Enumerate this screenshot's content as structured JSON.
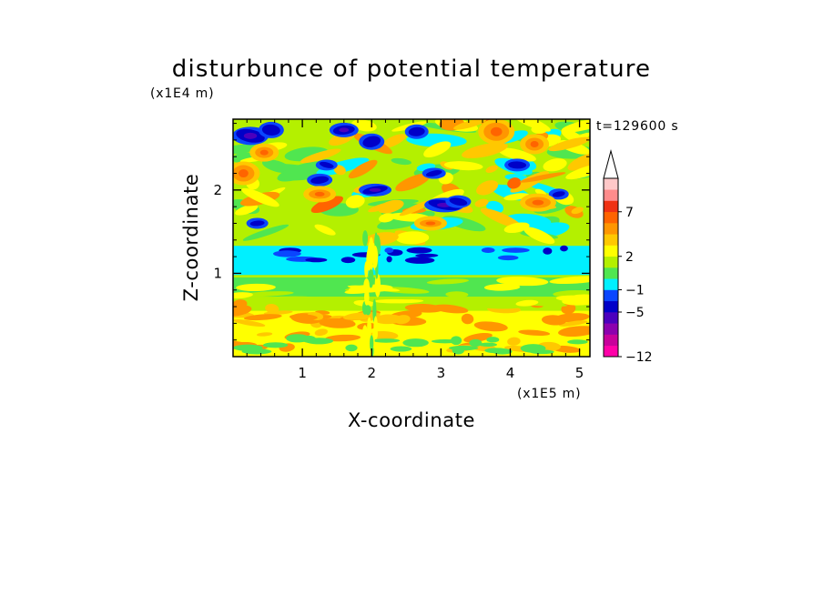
{
  "chart_data": {
    "type": "heatmap",
    "title": "disturbunce of potential temperature",
    "time_label": "t=129600 s",
    "xlabel": "X-coordinate",
    "ylabel": "Z-coordinate",
    "x_unit": "(x1E5 m)",
    "y_unit": "(x1E4 m)",
    "xlim": [
      0,
      5.15
    ],
    "ylim": [
      0,
      2.85
    ],
    "x_ticks": [
      1,
      2,
      3,
      4,
      5
    ],
    "x_tick_labels": [
      "1",
      "2",
      "3",
      "4",
      "5"
    ],
    "y_ticks": [
      1,
      2
    ],
    "y_tick_labels": [
      "1",
      "2"
    ],
    "colorbar": {
      "colors": [
        "#ff00a8",
        "#c8009b",
        "#8c00ae",
        "#4b00bd",
        "#0000c8",
        "#0a46ff",
        "#00f0ff",
        "#50e650",
        "#b4f000",
        "#ffff00",
        "#ffc800",
        "#ff9600",
        "#ff6400",
        "#f03214",
        "#ff8c8c",
        "#ffc8c8"
      ],
      "labels": [
        {
          "value": "-12",
          "level": 0
        },
        {
          "value": "-5",
          "level": 4
        },
        {
          "value": "-1",
          "level": 6
        },
        {
          "value": "2",
          "level": 9
        },
        {
          "value": "7",
          "level": 13
        }
      ],
      "extend_max": true
    },
    "field_bands": [
      {
        "z_range": [
          0.0,
          0.55
        ],
        "dominant_class": "yellow",
        "secondary": [
          "orange",
          "green"
        ]
      },
      {
        "z_range": [
          0.55,
          0.95
        ],
        "dominant_class": "yellow-green",
        "secondary": [
          "green",
          "yellow"
        ]
      },
      {
        "z_range": [
          0.95,
          1.35
        ],
        "dominant_class": "cyan",
        "secondary": [
          "blue",
          "green"
        ]
      },
      {
        "z_range": [
          1.35,
          2.3
        ],
        "dominant_class": "mixed",
        "secondary": [
          "yellow",
          "orange",
          "green",
          "cyan",
          "blue"
        ]
      },
      {
        "z_range": [
          2.3,
          2.85
        ],
        "dominant_class": "mixed",
        "secondary": [
          "orange",
          "yellow",
          "blue",
          "navy"
        ]
      }
    ]
  }
}
